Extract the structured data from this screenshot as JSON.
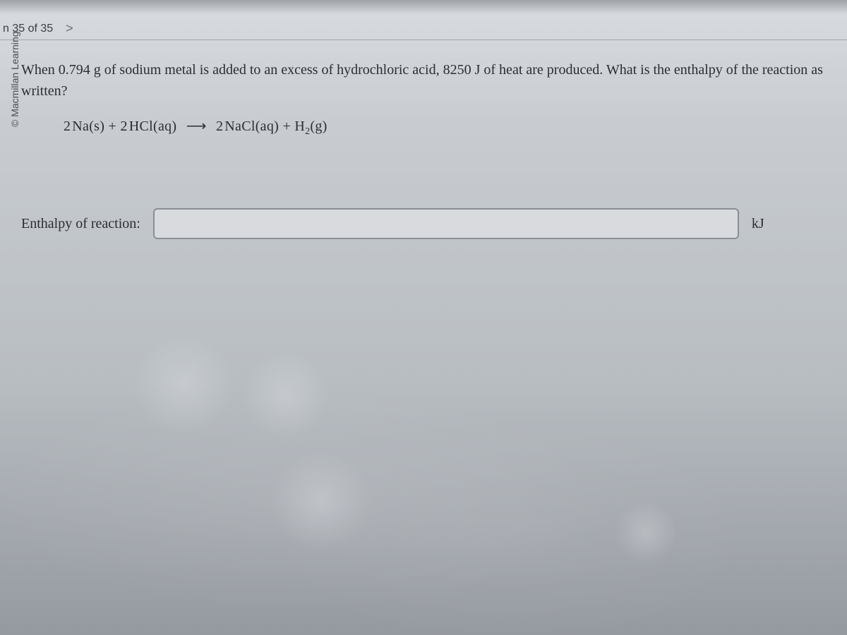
{
  "nav": {
    "counter": "n 35 of 35",
    "next_symbol": ">"
  },
  "copyright": "© Macmillan Learning",
  "question": {
    "text": "When 0.794 g of sodium metal is added to an excess of hydrochloric acid, 8250 J of heat are produced. What is the enthalpy of the reaction as written?"
  },
  "equation": {
    "reactant1_coeff": "2",
    "reactant1": "Na(s)",
    "plus1": "+",
    "reactant2_coeff": "2",
    "reactant2": "HCl(aq)",
    "arrow": "⟶",
    "product1_coeff": "2",
    "product1": "NaCl(aq)",
    "plus2": "+",
    "product2_base": "H",
    "product2_sub": "2",
    "product2_state": "(g)"
  },
  "answer": {
    "label": "Enthalpy of reaction:",
    "value": "",
    "unit": "kJ"
  },
  "colors": {
    "text": "#2a2e33",
    "border": "#8a8f96",
    "bg_top": "#d8dce0",
    "bg_bottom": "#9599a0"
  }
}
